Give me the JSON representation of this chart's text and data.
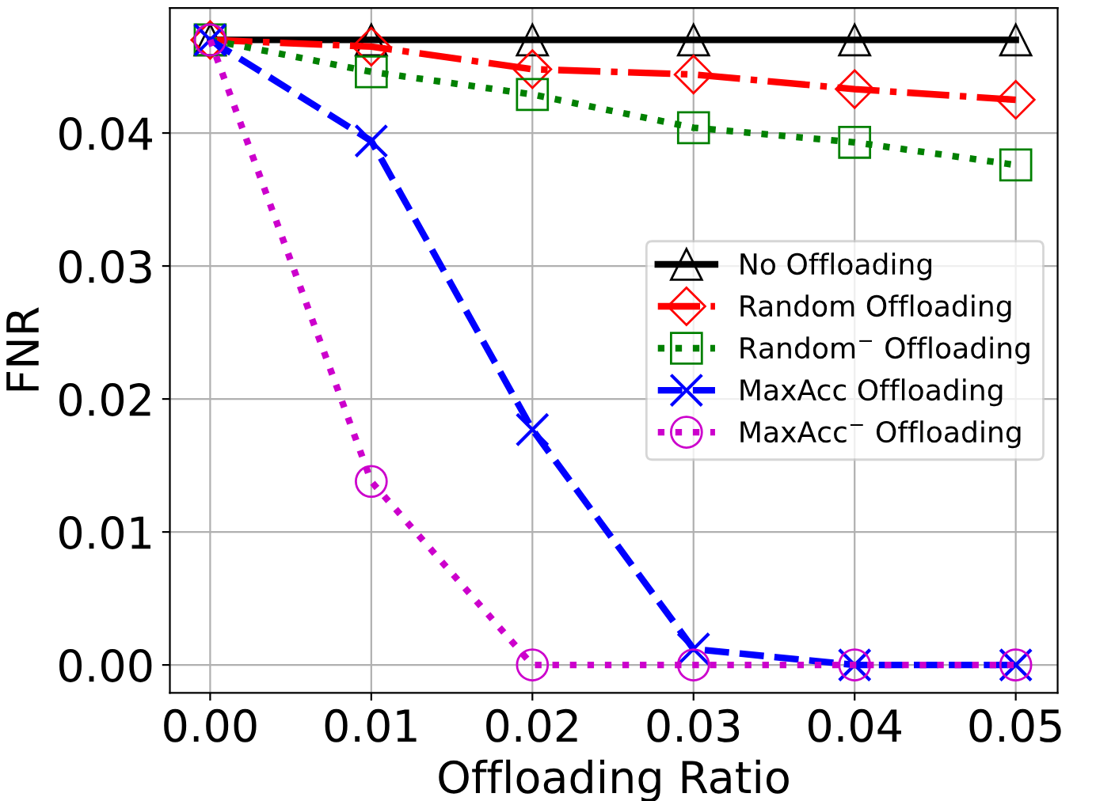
{
  "chart_data": {
    "type": "line",
    "xlabel": "Offloading Ratio",
    "ylabel": "FNR",
    "x": [
      0.0,
      0.01,
      0.02,
      0.03,
      0.04,
      0.05
    ],
    "series": [
      {
        "name": "No Offloading",
        "color": "#000000",
        "marker": "triangle",
        "line_style": "solid",
        "values": [
          0.047,
          0.047,
          0.047,
          0.047,
          0.047,
          0.047
        ]
      },
      {
        "name": "Random Offloading",
        "color": "#ff0000",
        "marker": "diamond",
        "line_style": "dashdot",
        "values": [
          0.047,
          0.0465,
          0.0448,
          0.0444,
          0.0433,
          0.0425
        ]
      },
      {
        "name": "Random$^{−}$ Offloading",
        "color": "#008000",
        "marker": "square",
        "line_style": "dotted",
        "values": [
          0.047,
          0.0446,
          0.0429,
          0.0404,
          0.0393,
          0.0376
        ]
      },
      {
        "name": "MaxAcc Offloading",
        "color": "#0000ff",
        "marker": "cross",
        "line_style": "dashed",
        "values": [
          0.047,
          0.0394,
          0.0177,
          0.0012,
          0.0,
          0.0
        ]
      },
      {
        "name": "MaxAcc$^{−}$ Offloading",
        "color": "#cc00cc",
        "marker": "circle",
        "line_style": "dotted",
        "values": [
          0.047,
          0.0138,
          0.0,
          0.0,
          0.0,
          0.0
        ]
      }
    ],
    "xlim": [
      -0.0025,
      0.0526
    ],
    "ylim": [
      -0.0021,
      0.0494
    ],
    "xticks": [
      {
        "value": 0.0,
        "label": "0.00"
      },
      0.01,
      0.02,
      0.03,
      0.04,
      0.05
    ],
    "yticks": [
      {
        "value": 0.0,
        "label": "0.00"
      },
      0.01,
      0.02,
      0.03,
      0.04
    ],
    "grid": true,
    "legend": "center right"
  }
}
